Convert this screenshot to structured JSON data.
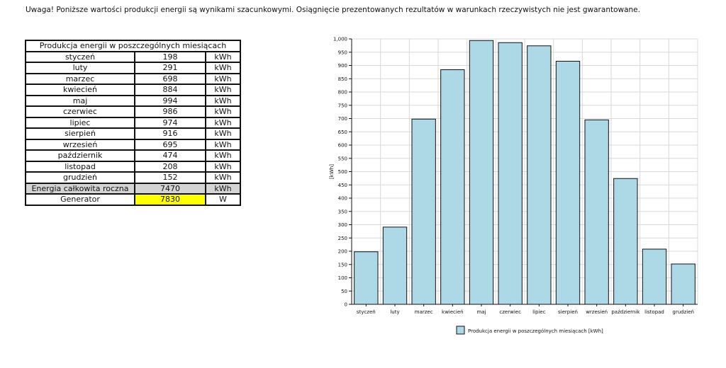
{
  "notice": "Uwaga! Poniższe wartości produkcji energii są wynikami szacunkowymi. Osiągnięcie prezentowanych rezultatów w warunkach rzeczywistych nie jest gwarantowane.",
  "table": {
    "title": "Produkcja energii w poszczególnych miesiącach",
    "rows": [
      {
        "month": "styczeń",
        "value": "198",
        "unit": "kWh"
      },
      {
        "month": "luty",
        "value": "291",
        "unit": "kWh"
      },
      {
        "month": "marzec",
        "value": "698",
        "unit": "kWh"
      },
      {
        "month": "kwiecień",
        "value": "884",
        "unit": "kWh"
      },
      {
        "month": "maj",
        "value": "994",
        "unit": "kWh"
      },
      {
        "month": "czerwiec",
        "value": "986",
        "unit": "kWh"
      },
      {
        "month": "lipiec",
        "value": "974",
        "unit": "kWh"
      },
      {
        "month": "sierpień",
        "value": "916",
        "unit": "kWh"
      },
      {
        "month": "wrzesień",
        "value": "695",
        "unit": "kWh"
      },
      {
        "month": "październik",
        "value": "474",
        "unit": "kWh"
      },
      {
        "month": "listopad",
        "value": "208",
        "unit": "kWh"
      },
      {
        "month": "grudzień",
        "value": "152",
        "unit": "kWh"
      }
    ],
    "total": {
      "label": "Energia całkowita roczna",
      "value": "7470",
      "unit": "kWh"
    },
    "generator": {
      "label": "Generator",
      "value": "7830",
      "unit": "W"
    }
  },
  "colors": {
    "bar": "#add8e6",
    "highlight": "#ffff00",
    "total_bg": "#d4d4d4"
  },
  "chart_data": {
    "type": "bar",
    "categories": [
      "styczeń",
      "luty",
      "marzec",
      "kwiecień",
      "maj",
      "czerwiec",
      "lipiec",
      "sierpień",
      "wrzesień",
      "październik",
      "listopad",
      "grudzień"
    ],
    "series": [
      {
        "name": "Produkcja energii w poszczególnych miesiącach [kWh]",
        "values": [
          198,
          291,
          698,
          884,
          994,
          986,
          974,
          916,
          695,
          474,
          208,
          152
        ]
      }
    ],
    "ylabel": "[kWh]",
    "ylim": [
      0,
      1000
    ],
    "yticks": [
      "0",
      "50",
      "100",
      "150",
      "200",
      "250",
      "300",
      "350",
      "400",
      "450",
      "500",
      "550",
      "600",
      "650",
      "700",
      "750",
      "800",
      "850",
      "900",
      "950",
      "1,000"
    ],
    "grid": true,
    "legend_position": "bottom"
  }
}
